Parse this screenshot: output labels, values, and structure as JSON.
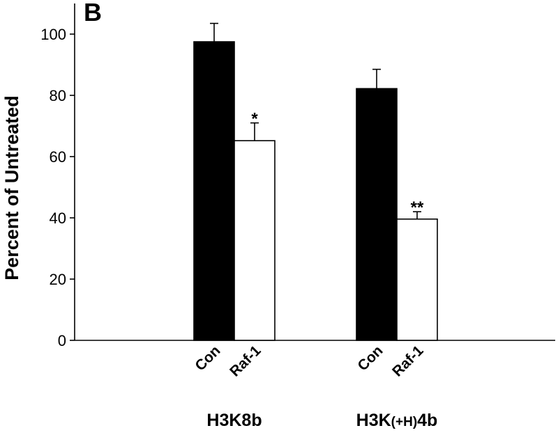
{
  "panel_label": "B",
  "chart_data": {
    "type": "bar",
    "ylabel": "Percent of Untreated",
    "xlabel": "",
    "ylim": [
      0,
      110
    ],
    "yticks": [
      0,
      20,
      40,
      60,
      80,
      100
    ],
    "grid": false,
    "legend": false,
    "groups": [
      {
        "name": "H3K8b",
        "label_parts": [
          "H3K8b"
        ],
        "bars": [
          {
            "category": "Con",
            "value": 97.5,
            "error": 6.0,
            "fill": "#000000",
            "significance": ""
          },
          {
            "category": "Raf-1",
            "value": 65.2,
            "error": 5.8,
            "fill": "#ffffff",
            "significance": "*"
          }
        ]
      },
      {
        "name": "H3K(+H)4b",
        "label_parts": [
          "H3K",
          "(+H)",
          "4b"
        ],
        "bars": [
          {
            "category": "Con",
            "value": 82.2,
            "error": 6.3,
            "fill": "#000000",
            "significance": ""
          },
          {
            "category": "Raf-1",
            "value": 39.6,
            "error": 2.4,
            "fill": "#ffffff",
            "significance": "**"
          }
        ]
      }
    ]
  }
}
